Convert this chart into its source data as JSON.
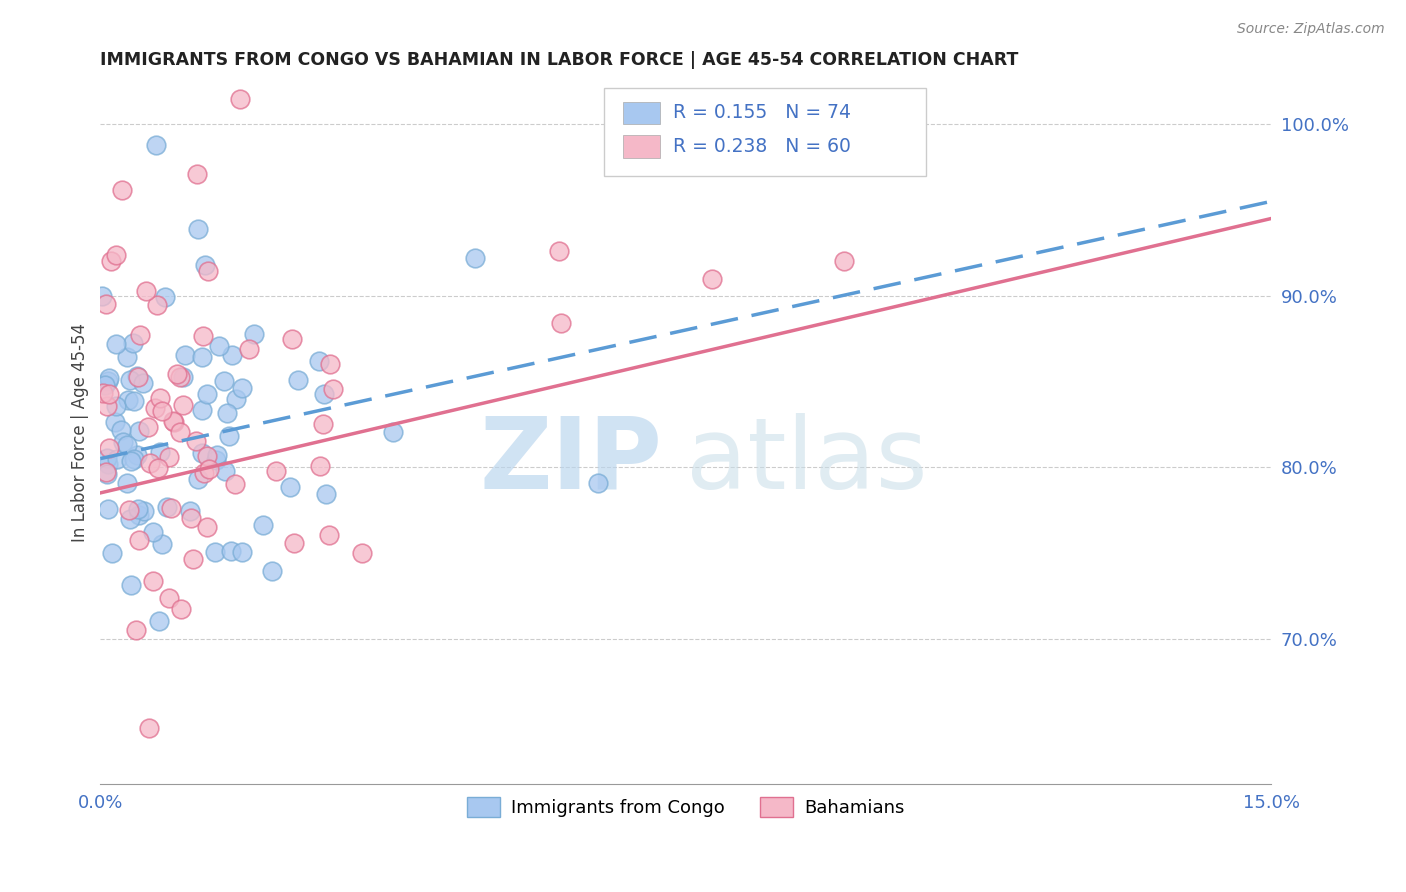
{
  "title": "IMMIGRANTS FROM CONGO VS BAHAMIAN IN LABOR FORCE | AGE 45-54 CORRELATION CHART",
  "source": "Source: ZipAtlas.com",
  "ylabel": "In Labor Force | Age 45-54",
  "xmin": 0.0,
  "xmax": 0.15,
  "ymin": 0.615,
  "ymax": 1.025,
  "xtick_positions": [
    0.0,
    0.03,
    0.06,
    0.09,
    0.12,
    0.15
  ],
  "xticklabels": [
    "0.0%",
    "",
    "",
    "",
    "",
    "15.0%"
  ],
  "yticks_right": [
    0.7,
    0.8,
    0.9,
    1.0
  ],
  "ytick_labels_right": [
    "70.0%",
    "80.0%",
    "90.0%",
    "100.0%"
  ],
  "R1": "0.155",
  "N1": "74",
  "R2": "0.238",
  "N2": "60",
  "color_congo_fill": "#a8c8f0",
  "color_congo_edge": "#7aadd6",
  "color_bahamas_fill": "#f5b8c8",
  "color_bahamas_edge": "#e07090",
  "color_trend_congo": "#5b9bd5",
  "color_trend_bahamas": "#e07090",
  "color_text_blue": "#4472c4",
  "color_grid": "#cccccc",
  "watermark_zip": "ZIP",
  "watermark_atlas": "atlas",
  "trend_congo_x0": 0.0,
  "trend_congo_y0": 0.805,
  "trend_congo_x1": 0.15,
  "trend_congo_y1": 0.955,
  "trend_bahamas_x0": 0.0,
  "trend_bahamas_y0": 0.785,
  "trend_bahamas_x1": 0.15,
  "trend_bahamas_y1": 0.945
}
